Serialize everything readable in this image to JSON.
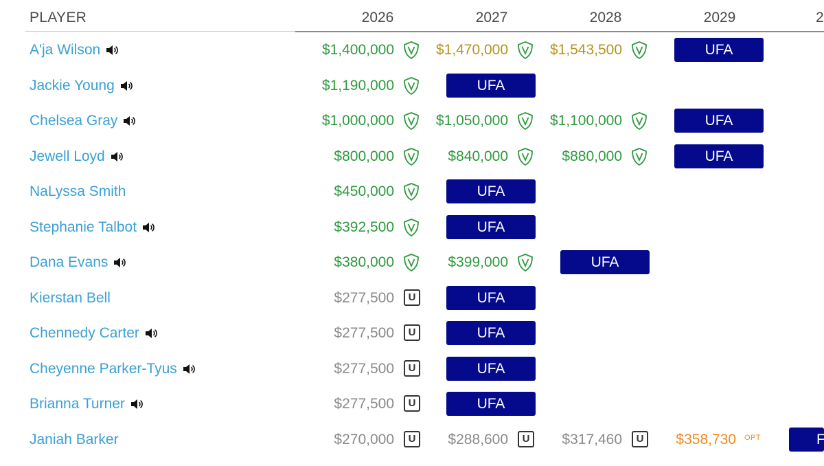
{
  "header": {
    "player": "PLAYER",
    "years": [
      "2026",
      "2027",
      "2028",
      "2029",
      "2"
    ]
  },
  "colors": {
    "link": "#3aa0d4",
    "guaranteed": "#2e9a3e",
    "gold": "#b3951c",
    "unguaranteed": "#8a8a8a",
    "option": "#f08a1e",
    "ufa_bg": "#050a8c"
  },
  "rows": [
    {
      "name": "A'ja Wilson",
      "audio": true,
      "cells": [
        {
          "type": "amount",
          "value": "$1,400,000",
          "color": "green",
          "icon": "shield"
        },
        {
          "type": "amount",
          "value": "$1,470,000",
          "color": "gold",
          "icon": "shield"
        },
        {
          "type": "amount",
          "value": "$1,543,500",
          "color": "gold",
          "icon": "shield"
        },
        {
          "type": "ufa",
          "label": "UFA"
        }
      ]
    },
    {
      "name": "Jackie Young",
      "audio": true,
      "cells": [
        {
          "type": "amount",
          "value": "$1,190,000",
          "color": "green",
          "icon": "shield"
        },
        {
          "type": "ufa",
          "label": "UFA"
        }
      ]
    },
    {
      "name": "Chelsea Gray",
      "audio": true,
      "cells": [
        {
          "type": "amount",
          "value": "$1,000,000",
          "color": "green",
          "icon": "shield"
        },
        {
          "type": "amount",
          "value": "$1,050,000",
          "color": "green",
          "icon": "shield"
        },
        {
          "type": "amount",
          "value": "$1,100,000",
          "color": "green",
          "icon": "shield"
        },
        {
          "type": "ufa",
          "label": "UFA"
        }
      ]
    },
    {
      "name": "Jewell Loyd",
      "audio": true,
      "cells": [
        {
          "type": "amount",
          "value": "$800,000",
          "color": "green",
          "icon": "shield"
        },
        {
          "type": "amount",
          "value": "$840,000",
          "color": "green",
          "icon": "shield"
        },
        {
          "type": "amount",
          "value": "$880,000",
          "color": "green",
          "icon": "shield"
        },
        {
          "type": "ufa",
          "label": "UFA"
        }
      ]
    },
    {
      "name": "NaLyssa Smith",
      "audio": false,
      "cells": [
        {
          "type": "amount",
          "value": "$450,000",
          "color": "green",
          "icon": "shield"
        },
        {
          "type": "ufa",
          "label": "UFA"
        }
      ]
    },
    {
      "name": "Stephanie Talbot",
      "audio": true,
      "cells": [
        {
          "type": "amount",
          "value": "$392,500",
          "color": "green",
          "icon": "shield"
        },
        {
          "type": "ufa",
          "label": "UFA"
        }
      ]
    },
    {
      "name": "Dana Evans",
      "audio": true,
      "cells": [
        {
          "type": "amount",
          "value": "$380,000",
          "color": "green",
          "icon": "shield"
        },
        {
          "type": "amount",
          "value": "$399,000",
          "color": "green",
          "icon": "shield"
        },
        {
          "type": "ufa",
          "label": "UFA"
        }
      ]
    },
    {
      "name": "Kierstan Bell",
      "audio": false,
      "cells": [
        {
          "type": "amount",
          "value": "$277,500",
          "color": "grey",
          "icon": "u",
          "icon_label": "U"
        },
        {
          "type": "ufa",
          "label": "UFA"
        }
      ]
    },
    {
      "name": "Chennedy Carter",
      "audio": true,
      "cells": [
        {
          "type": "amount",
          "value": "$277,500",
          "color": "grey",
          "icon": "u",
          "icon_label": "U"
        },
        {
          "type": "ufa",
          "label": "UFA"
        }
      ]
    },
    {
      "name": "Cheyenne Parker-Tyus",
      "audio": true,
      "cells": [
        {
          "type": "amount",
          "value": "$277,500",
          "color": "grey",
          "icon": "u",
          "icon_label": "U"
        },
        {
          "type": "ufa",
          "label": "UFA"
        }
      ]
    },
    {
      "name": "Brianna Turner",
      "audio": true,
      "cells": [
        {
          "type": "amount",
          "value": "$277,500",
          "color": "grey",
          "icon": "u",
          "icon_label": "U"
        },
        {
          "type": "ufa",
          "label": "UFA"
        }
      ]
    },
    {
      "name": "Janiah Barker",
      "audio": false,
      "cells": [
        {
          "type": "amount",
          "value": "$270,000",
          "color": "grey",
          "icon": "u",
          "icon_label": "U"
        },
        {
          "type": "amount",
          "value": "$288,600",
          "color": "grey",
          "icon": "u",
          "icon_label": "U"
        },
        {
          "type": "amount",
          "value": "$317,460",
          "color": "grey",
          "icon": "u",
          "icon_label": "U"
        },
        {
          "type": "amount",
          "value": "$358,730",
          "color": "orange",
          "icon": "opt",
          "icon_label": "OPT"
        },
        {
          "type": "ufa",
          "label": "F"
        }
      ]
    }
  ]
}
